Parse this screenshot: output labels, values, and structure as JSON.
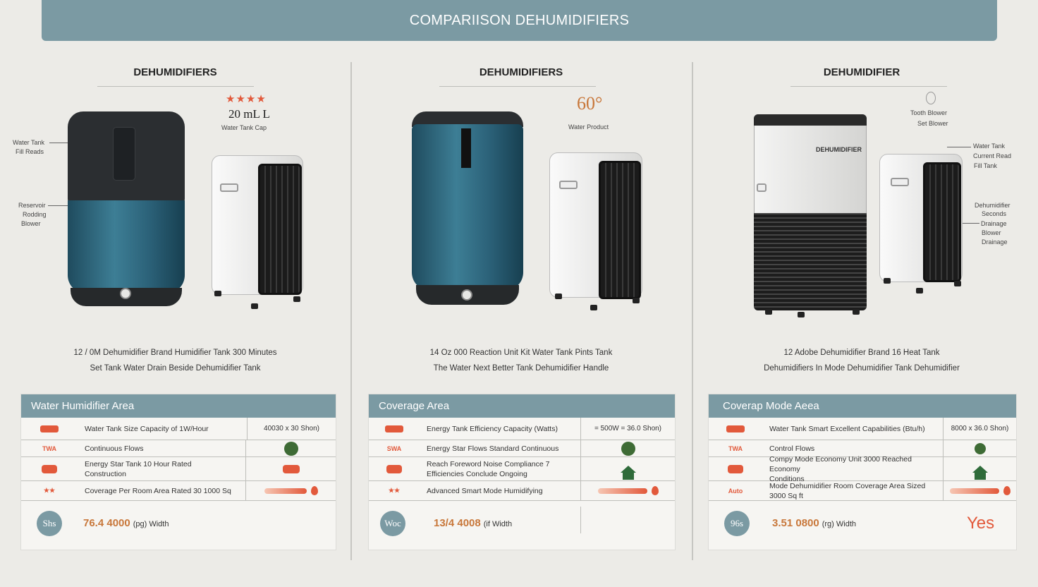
{
  "header": {
    "title": "COMPARIISON DEHUMIDIFIERS"
  },
  "columns": [
    {
      "title": "DEHUMIDIFIERS",
      "stars": "★★★★",
      "capacity": "20 mL L",
      "capacity_sub": "Water Tank Cap",
      "callouts": [
        "Water Tank",
        "Fill Reads",
        "Reservoir",
        "Rodding",
        "Blower"
      ],
      "desc_line1": "12 / 0M Dehumidifier Brand Humidifier Tank 300 Minutes",
      "desc_line2": "Set Tank Water Drain Beside Dehumidifier Tank"
    },
    {
      "title": "DEHUMIDIFIERS",
      "capacity": "60°",
      "capacity_sub": "Water Product",
      "desc_line1": "14 Oz 000 Reaction Unit Kit Water Tank Pints Tank",
      "desc_line2": "The Water Next Better Tank Dehumidifier Handle"
    },
    {
      "title": "DEHUMIDIFIER",
      "callouts_top": [
        "Tooth Blower",
        "Set Blower"
      ],
      "callouts_right": [
        "Water Tank",
        "Current Read",
        "Fill Tank"
      ],
      "callouts_right2": [
        "Dehumidifier",
        "Seconds",
        "Drainage",
        "Blower",
        "Drainage"
      ],
      "brand": "DEHUMIDIFIER",
      "desc_line1": "12 Adobe Dehumidifier Brand 16 Heat Tank",
      "desc_line2": "Dehumidifiers In Mode Dehumidifier Tank Dehumidifier"
    }
  ],
  "tables": [
    {
      "header": "Water Humidifier Area",
      "rows": [
        {
          "icon": "tank-icon",
          "text": "Water Tank Size Capacity of 1W/Hour",
          "value": "40030 x 30 Shon)"
        },
        {
          "icon": "text-icon",
          "icon_text": "TWA",
          "text": "Continuous Flows",
          "value_icon": "circle"
        },
        {
          "icon": "drawer-icon",
          "text": "Energy Star Tank 10 Hour Rated\nConstruction",
          "value_icon": "house"
        },
        {
          "icon": "stars-icon",
          "icon_text": "★★",
          "text": "Coverage Per Room Area Rated 30 1000 Sq",
          "value_icon": "bar"
        }
      ],
      "badge": "Shs",
      "price_big": "76.4 4000",
      "price_small": "(pg) Width",
      "yes": ""
    },
    {
      "header": "Coverage Area",
      "rows": [
        {
          "icon": "tank-icon",
          "text": "Energy Tank Efficiency Capacity (Watts)",
          "value": "= 500W  = 36.0 Shon)"
        },
        {
          "icon": "text-icon",
          "icon_text": "SWA",
          "text": "Energy Star Flows Standard Continuous",
          "value_icon": "circle"
        },
        {
          "icon": "drawer-icon",
          "text": "Reach Foreword Noise Compliance 7\nEfficiencies Conclude Ongoing",
          "value_icon": "house"
        },
        {
          "icon": "stars-icon",
          "icon_text": "★★",
          "text": "Advanced Smart Mode Humidifying",
          "value_icon": "bar"
        }
      ],
      "badge": "Woc",
      "price_big": "13/4 4008",
      "price_small": "(if Width",
      "yes": ""
    },
    {
      "header": "Coverap Mode Aeea",
      "rows": [
        {
          "icon": "tank-icon",
          "text": "Water Tank Smart Excellent Capabilities (Btu/h)",
          "value": "8000 x 36.0 Shon)"
        },
        {
          "icon": "text-icon",
          "icon_text": "TWA",
          "text": "Control Flows",
          "value_icon": "circle"
        },
        {
          "icon": "drawer-icon",
          "text": "Compy Mode Economy Unit 3000 Reached Economy\nConditions",
          "value_icon": "house"
        },
        {
          "icon": "stars-icon",
          "icon_text": "Auto",
          "text": "Mode Dehumidifier Room Coverage Area Sized 3000 Sq ft",
          "value_icon": "bar"
        }
      ],
      "badge": "96s",
      "price_big": "3.51 0800",
      "price_small": "(rg) Width",
      "yes": "Yes"
    }
  ],
  "colors": {
    "accent": "#7b9aa3",
    "orange": "#e2593b",
    "green": "#3e6b35",
    "background": "#ecebe7"
  }
}
